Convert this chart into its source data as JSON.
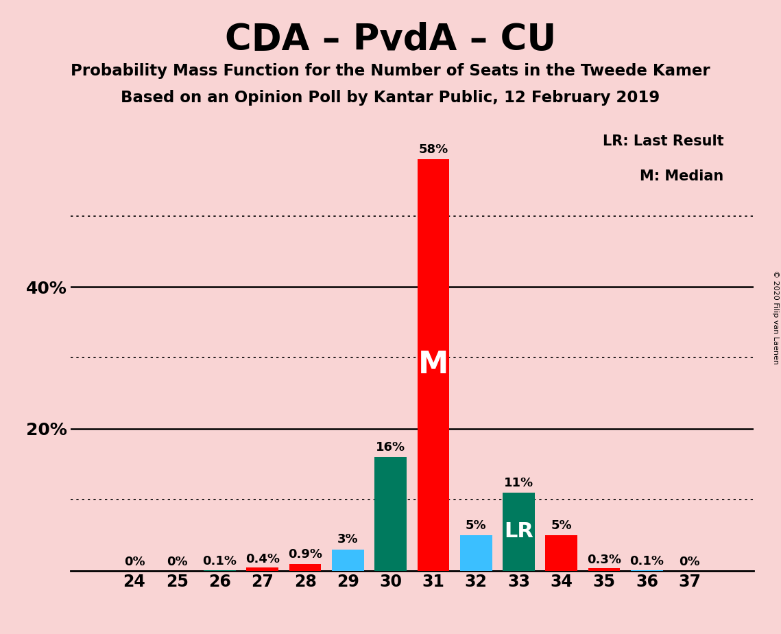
{
  "title": "CDA – PvdA – CU",
  "subtitle1": "Probability Mass Function for the Number of Seats in the Tweede Kamer",
  "subtitle2": "Based on an Opinion Poll by Kantar Public, 12 February 2019",
  "copyright": "© 2020 Filip van Laenen",
  "seats": [
    24,
    25,
    26,
    27,
    28,
    29,
    30,
    31,
    32,
    33,
    34,
    35,
    36,
    37
  ],
  "probabilities": [
    0.0,
    0.0,
    0.1,
    0.4,
    0.9,
    3.0,
    16.0,
    58.0,
    5.0,
    11.0,
    5.0,
    0.3,
    0.1,
    0.0
  ],
  "bar_colors": [
    "#FF0000",
    "#FF0000",
    "#007A5E",
    "#FF0000",
    "#FF0000",
    "#3BBFFF",
    "#007A5E",
    "#FF0000",
    "#3BBFFF",
    "#007A5E",
    "#FF0000",
    "#FF0000",
    "#3BBFFF",
    "#FF0000"
  ],
  "labels": [
    "0%",
    "0%",
    "0.1%",
    "0.4%",
    "0.9%",
    "3%",
    "16%",
    "58%",
    "5%",
    "11%",
    "5%",
    "0.3%",
    "0.1%",
    "0%"
  ],
  "median_seat": 31,
  "last_result_seat": 33,
  "background_color": "#F9D4D4",
  "legend_text1": "LR: Last Result",
  "legend_text2": "M: Median",
  "ylim": [
    0,
    63
  ],
  "solid_yticks": [
    20,
    40
  ],
  "dotted_yticks": [
    10,
    30,
    50
  ],
  "ytick_labels_pos": [
    20,
    40
  ],
  "ytick_labels_text": [
    "20%",
    "40%"
  ]
}
